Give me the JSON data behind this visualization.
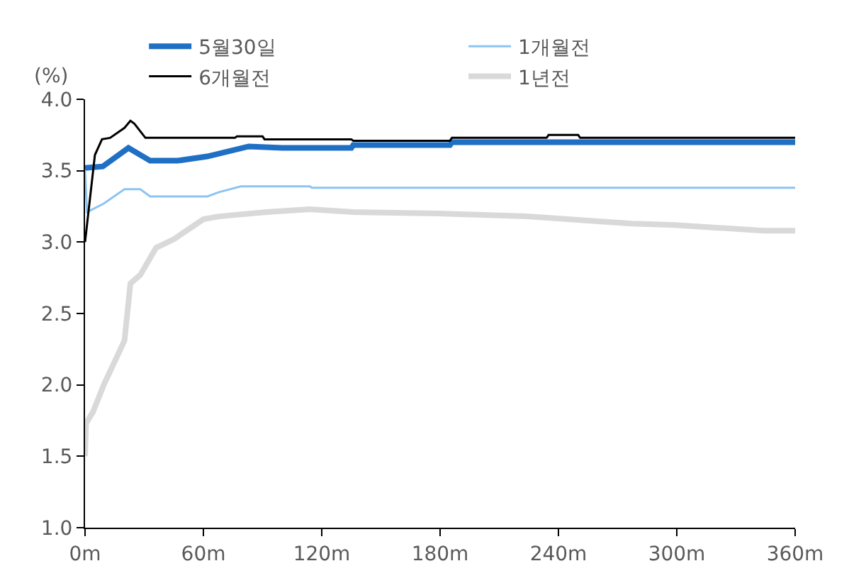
{
  "chart_data": {
    "type": "line",
    "ylabel": "(%)",
    "xlim": [
      0,
      360
    ],
    "xticks": [
      {
        "value": 0,
        "label": "0m"
      },
      {
        "value": 60,
        "label": "60m"
      },
      {
        "value": 120,
        "label": "120m"
      },
      {
        "value": 180,
        "label": "180m"
      },
      {
        "value": 240,
        "label": "240m"
      },
      {
        "value": 300,
        "label": "300m"
      },
      {
        "value": 360,
        "label": "360m"
      }
    ],
    "ylim": [
      1.0,
      4.0
    ],
    "yticks": [
      {
        "value": 1.0,
        "label": "1.0"
      },
      {
        "value": 1.5,
        "label": "1.5"
      },
      {
        "value": 2.0,
        "label": "2.0"
      },
      {
        "value": 2.5,
        "label": "2.5"
      },
      {
        "value": 3.0,
        "label": "3.0"
      },
      {
        "value": 3.5,
        "label": "3.5"
      },
      {
        "value": 4.0,
        "label": "4.0"
      }
    ],
    "grid": false,
    "legend": "top",
    "marker": "none",
    "line_style": "solid",
    "series": [
      {
        "name": "5월30일",
        "color": "#1f6fc5",
        "x": [
          0,
          9,
          22,
          33,
          47,
          62,
          83,
          100,
          135,
          136,
          185,
          186,
          360
        ],
        "values": [
          3.52,
          3.53,
          3.66,
          3.57,
          3.57,
          3.6,
          3.67,
          3.66,
          3.66,
          3.68,
          3.68,
          3.7,
          3.7
        ]
      },
      {
        "name": "1개월전",
        "color": "#8dc4f2",
        "x": [
          0,
          1,
          9.5,
          20,
          28,
          33,
          62,
          68,
          79,
          114,
          115,
          360
        ],
        "values": [
          3.5,
          3.21,
          3.27,
          3.37,
          3.37,
          3.32,
          3.32,
          3.35,
          3.39,
          3.39,
          3.38,
          3.38
        ]
      },
      {
        "name": "6개월전",
        "color": "#000000",
        "x": [
          0,
          5,
          8.6,
          12.7,
          20,
          23,
          25,
          30.6,
          76,
          77,
          90,
          91,
          135,
          136,
          185,
          186,
          234,
          235,
          250,
          251,
          360
        ],
        "values": [
          3.0,
          3.61,
          3.72,
          3.73,
          3.8,
          3.85,
          3.83,
          3.73,
          3.73,
          3.74,
          3.74,
          3.72,
          3.72,
          3.71,
          3.71,
          3.73,
          3.73,
          3.75,
          3.75,
          3.73,
          3.73
        ]
      },
      {
        "name": "1년전",
        "color": "#d9d9d9",
        "x": [
          0,
          0.5,
          4,
          9.5,
          20,
          23,
          28,
          36,
          45,
          60,
          68,
          92,
          114,
          136,
          179,
          224,
          256,
          277,
          299,
          321,
          344,
          360
        ],
        "values": [
          1.5,
          1.73,
          1.81,
          2.0,
          2.31,
          2.71,
          2.77,
          2.96,
          3.02,
          3.16,
          3.18,
          3.21,
          3.23,
          3.21,
          3.2,
          3.18,
          3.15,
          3.13,
          3.12,
          3.1,
          3.08,
          3.08
        ]
      }
    ]
  }
}
